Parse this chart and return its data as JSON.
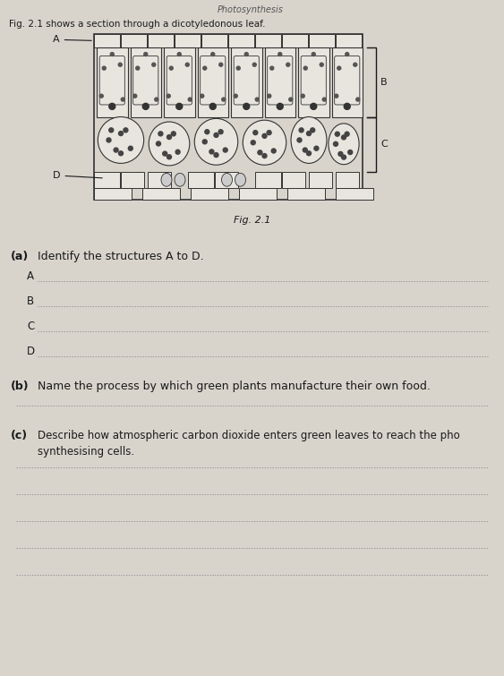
{
  "bg_color": "#d8d4cc",
  "paper_color": "#e8e5df",
  "title_top": "Photosynthesis",
  "fig_intro": "Fig. 2.1 shows a section through a dicotyledonous leaf.",
  "fig_caption": "Fig. 2.1",
  "part_a_label": "(a)",
  "part_a_text": "Identify the structures A to D.",
  "labels_abcd": [
    "A",
    "B",
    "C",
    "D"
  ],
  "part_b_label": "(b)",
  "part_b_text": "Name the process by which green plants manufacture their own food.",
  "part_c_label": "(c)",
  "part_c_line1": "Describe how atmospheric carbon dioxide enters green leaves to reach the pho",
  "part_c_line2": "synthesising cells.",
  "answer_lines_b": 1,
  "answer_lines_c": 5,
  "line_color": "#999999",
  "text_color": "#1a1a1a",
  "cell_color": "#e8e5df",
  "diagram_border": "#333333"
}
